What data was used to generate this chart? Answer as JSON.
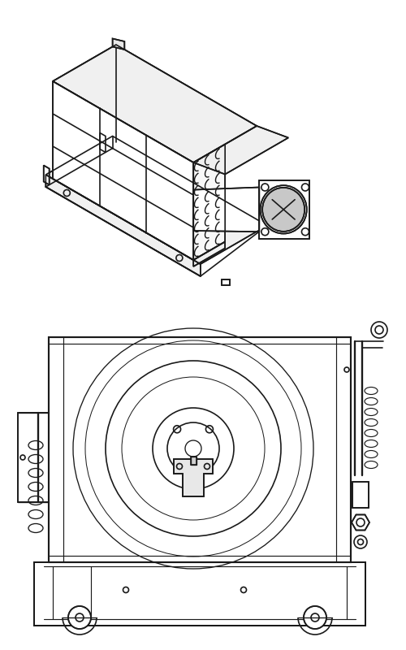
{
  "bg_color": "#ffffff",
  "line_color": "#1a1a1a",
  "lw": 1.2,
  "fig_width": 5.0,
  "fig_height": 8.0,
  "dpi": 100
}
